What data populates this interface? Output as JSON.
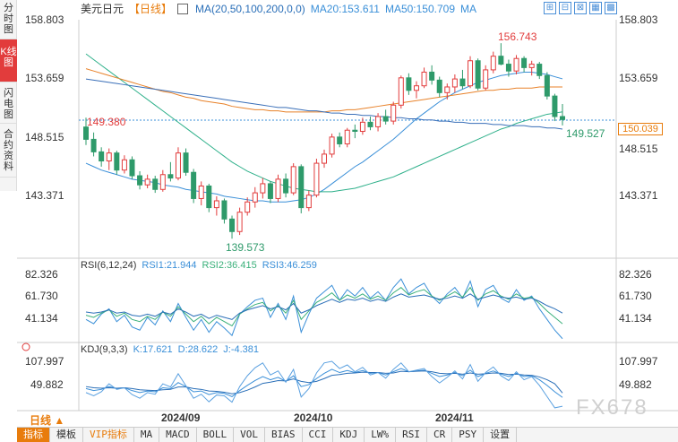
{
  "side_tabs": [
    {
      "label": "分时图",
      "active": false
    },
    {
      "label": "K线图",
      "active": true
    },
    {
      "label": "闪电图",
      "active": false
    },
    {
      "label": "合约资料",
      "active": false
    }
  ],
  "header": {
    "symbol": "美元日元",
    "period": "【日线】",
    "ma_label": "MA(20,50,100,200,0,0)",
    "ma20": "MA20:153.611",
    "ma50": "MA50:150.709",
    "ma_extra": "MA"
  },
  "tools": [
    "⊞",
    "⊟",
    "⊠",
    "▦",
    "▩"
  ],
  "price_axis": {
    "ticks": [
      "158.803",
      "153.659",
      "148.515",
      "143.371"
    ],
    "last_price": "150.039",
    "high_label": "156.743",
    "low_label": "139.573",
    "left_label": "149.380",
    "right_label": "149.527"
  },
  "rsi": {
    "name": "RSI(6,12,24)",
    "rsi1": "RSI1:21.944",
    "rsi2": "RSI2:36.415",
    "rsi3": "RSI3:46.259",
    "ticks": [
      "82.326",
      "61.730",
      "41.134"
    ]
  },
  "kdj": {
    "name": "KDJ(9,3,3)",
    "k": "K:17.621",
    "d": "D:28.622",
    "j": "J:-4.381",
    "ticks": [
      "107.997",
      "49.882"
    ]
  },
  "time_axis": [
    "2024/09",
    "2024/10",
    "2024/11"
  ],
  "period_selector": "日线 ▲",
  "bottom_tabs": [
    {
      "label": "指标",
      "active": true,
      "vip": false
    },
    {
      "label": "模板",
      "active": false,
      "vip": false
    },
    {
      "label": "VIP指标",
      "active": false,
      "vip": true
    },
    {
      "label": "MA",
      "active": false,
      "vip": false
    },
    {
      "label": "MACD",
      "active": false,
      "vip": false
    },
    {
      "label": "BOLL",
      "active": false,
      "vip": false
    },
    {
      "label": "VOL",
      "active": false,
      "vip": false
    },
    {
      "label": "BIAS",
      "active": false,
      "vip": false
    },
    {
      "label": "CCI",
      "active": false,
      "vip": false
    },
    {
      "label": "KDJ",
      "active": false,
      "vip": false
    },
    {
      "label": "LW%",
      "active": false,
      "vip": false
    },
    {
      "label": "RSI",
      "active": false,
      "vip": false
    },
    {
      "label": "CR",
      "active": false,
      "vip": false
    },
    {
      "label": "PSY",
      "active": false,
      "vip": false
    },
    {
      "label": "设置",
      "active": false,
      "vip": false
    }
  ],
  "watermark": "FX678",
  "colors": {
    "up": "#e23c3c",
    "down": "#2e9a6a",
    "ma20": "#3a8fd8",
    "ma50": "#2eb08a",
    "ma100": "#e8822a",
    "ma200": "#3a6fb8"
  },
  "candles": [
    [
      149.38,
      150.2,
      147.8,
      148.3
    ],
    [
      148.3,
      148.9,
      146.8,
      147.2
    ],
    [
      147.2,
      147.6,
      145.9,
      146.4
    ],
    [
      146.4,
      147.5,
      145.6,
      147.1
    ],
    [
      147.1,
      147.3,
      145.2,
      145.6
    ],
    [
      145.6,
      146.9,
      145.3,
      146.5
    ],
    [
      146.5,
      146.8,
      144.8,
      145.1
    ],
    [
      145.1,
      145.5,
      143.9,
      144.3
    ],
    [
      144.3,
      145.2,
      144.0,
      144.8
    ],
    [
      144.8,
      145.1,
      143.6,
      143.9
    ],
    [
      143.9,
      145.6,
      143.7,
      145.2
    ],
    [
      145.2,
      146.3,
      144.6,
      144.9
    ],
    [
      144.9,
      147.6,
      144.7,
      147.1
    ],
    [
      147.1,
      147.5,
      145.1,
      145.4
    ],
    [
      145.4,
      145.7,
      142.7,
      143.1
    ],
    [
      143.1,
      144.6,
      142.5,
      144.2
    ],
    [
      144.2,
      144.4,
      141.9,
      142.3
    ],
    [
      142.3,
      143.3,
      141.6,
      142.9
    ],
    [
      142.9,
      143.1,
      140.9,
      141.3
    ],
    [
      141.3,
      141.6,
      139.573,
      140.2
    ],
    [
      140.2,
      142.3,
      139.9,
      141.9
    ],
    [
      141.9,
      143.2,
      141.6,
      142.8
    ],
    [
      142.8,
      144.1,
      142.3,
      143.6
    ],
    [
      143.6,
      144.9,
      143.1,
      144.4
    ],
    [
      144.4,
      144.6,
      142.7,
      143.1
    ],
    [
      143.1,
      145.2,
      142.8,
      144.8
    ],
    [
      144.8,
      145.3,
      143.2,
      143.6
    ],
    [
      143.6,
      146.2,
      143.4,
      145.9
    ],
    [
      145.9,
      146.1,
      141.8,
      142.3
    ],
    [
      142.3,
      143.8,
      142.0,
      143.4
    ],
    [
      143.4,
      146.6,
      143.2,
      146.2
    ],
    [
      146.2,
      147.4,
      145.8,
      147.0
    ],
    [
      147.0,
      148.8,
      146.7,
      148.5
    ],
    [
      148.5,
      148.9,
      147.6,
      147.9
    ],
    [
      147.9,
      149.3,
      147.6,
      149.1
    ],
    [
      149.1,
      149.6,
      148.4,
      149.0
    ],
    [
      149.0,
      150.2,
      148.7,
      149.8
    ],
    [
      149.8,
      150.3,
      149.1,
      149.4
    ],
    [
      149.4,
      150.6,
      149.0,
      150.3
    ],
    [
      150.3,
      150.9,
      149.6,
      149.9
    ],
    [
      149.9,
      151.6,
      149.6,
      151.3
    ],
    [
      151.3,
      153.9,
      151.0,
      153.7
    ],
    [
      153.7,
      154.1,
      152.2,
      152.6
    ],
    [
      152.6,
      153.4,
      151.9,
      153.0
    ],
    [
      153.0,
      154.6,
      152.8,
      154.2
    ],
    [
      154.2,
      154.8,
      153.1,
      153.5
    ],
    [
      153.5,
      153.8,
      152.0,
      152.4
    ],
    [
      152.4,
      153.2,
      151.8,
      152.9
    ],
    [
      152.9,
      154.0,
      152.4,
      153.6
    ],
    [
      153.6,
      154.4,
      152.7,
      153.0
    ],
    [
      153.0,
      155.6,
      152.8,
      155.2
    ],
    [
      155.2,
      155.4,
      152.6,
      152.8
    ],
    [
      152.8,
      154.8,
      152.6,
      154.4
    ],
    [
      154.4,
      156.0,
      154.1,
      155.6
    ],
    [
      155.6,
      156.743,
      154.8,
      154.9
    ],
    [
      154.9,
      155.3,
      153.8,
      154.3
    ],
    [
      154.3,
      155.7,
      154.0,
      155.4
    ],
    [
      155.4,
      155.6,
      154.2,
      154.6
    ],
    [
      154.6,
      155.2,
      153.9,
      154.9
    ],
    [
      154.9,
      155.1,
      153.6,
      153.9
    ],
    [
      153.9,
      154.2,
      151.8,
      152.1
    ],
    [
      152.1,
      152.3,
      149.9,
      150.3
    ],
    [
      150.3,
      151.4,
      149.527,
      150.039
    ]
  ],
  "rsi_series": {
    "rsi1": [
      40,
      36,
      45,
      50,
      38,
      44,
      33,
      30,
      42,
      35,
      48,
      38,
      55,
      42,
      30,
      40,
      28,
      38,
      32,
      25,
      45,
      52,
      58,
      60,
      42,
      55,
      40,
      62,
      28,
      45,
      60,
      66,
      72,
      58,
      68,
      62,
      70,
      60,
      66,
      58,
      70,
      78,
      64,
      70,
      74,
      62,
      55,
      64,
      70,
      60,
      76,
      52,
      68,
      72,
      60,
      56,
      68,
      58,
      62,
      50,
      40,
      30,
      22
    ],
    "rsi2": [
      44,
      42,
      46,
      49,
      43,
      46,
      40,
      38,
      43,
      40,
      47,
      43,
      52,
      45,
      38,
      43,
      36,
      42,
      38,
      34,
      45,
      50,
      54,
      56,
      48,
      53,
      46,
      58,
      40,
      48,
      56,
      60,
      65,
      58,
      63,
      60,
      64,
      59,
      62,
      58,
      65,
      70,
      63,
      66,
      68,
      62,
      58,
      62,
      66,
      61,
      70,
      58,
      64,
      67,
      62,
      59,
      64,
      60,
      61,
      55,
      48,
      42,
      36
    ],
    "rsi3": [
      47,
      46,
      47,
      49,
      46,
      47,
      44,
      43,
      45,
      43,
      47,
      45,
      50,
      47,
      43,
      45,
      41,
      44,
      42,
      40,
      46,
      49,
      51,
      53,
      50,
      52,
      49,
      55,
      46,
      49,
      53,
      56,
      59,
      56,
      59,
      58,
      60,
      57,
      59,
      57,
      61,
      64,
      61,
      62,
      63,
      61,
      59,
      60,
      62,
      60,
      64,
      59,
      61,
      63,
      61,
      60,
      61,
      59,
      60,
      57,
      53,
      50,
      46
    ]
  },
  "kdj_series": {
    "k": [
      40,
      35,
      38,
      45,
      40,
      42,
      35,
      30,
      34,
      32,
      42,
      40,
      55,
      45,
      32,
      34,
      25,
      30,
      28,
      20,
      35,
      48,
      60,
      70,
      62,
      68,
      58,
      72,
      45,
      50,
      65,
      78,
      88,
      80,
      85,
      80,
      85,
      78,
      80,
      74,
      82,
      90,
      82,
      84,
      86,
      78,
      70,
      74,
      80,
      72,
      86,
      70,
      78,
      84,
      76,
      70,
      78,
      70,
      72,
      62,
      48,
      32,
      18
    ],
    "d": [
      45,
      42,
      41,
      42,
      41,
      42,
      40,
      37,
      36,
      35,
      37,
      38,
      44,
      44,
      40,
      38,
      34,
      33,
      31,
      27,
      30,
      36,
      44,
      53,
      56,
      60,
      59,
      64,
      58,
      55,
      58,
      65,
      73,
      75,
      78,
      79,
      81,
      80,
      80,
      78,
      79,
      83,
      82,
      83,
      84,
      82,
      78,
      77,
      78,
      76,
      79,
      76,
      77,
      79,
      78,
      75,
      76,
      74,
      73,
      69,
      62,
      52,
      29
    ],
    "j": [
      30,
      22,
      32,
      52,
      38,
      42,
      25,
      16,
      30,
      26,
      52,
      44,
      77,
      47,
      16,
      26,
      7,
      24,
      22,
      6,
      45,
      72,
      92,
      104,
      74,
      84,
      56,
      88,
      19,
      40,
      79,
      104,
      108,
      90,
      99,
      82,
      93,
      74,
      80,
      66,
      88,
      104,
      82,
      86,
      90,
      70,
      54,
      68,
      84,
      64,
      100,
      58,
      80,
      94,
      72,
      60,
      82,
      62,
      70,
      48,
      20,
      -8,
      -4
    ]
  },
  "ma_series": {
    "ma20": [
      146.2,
      145.9,
      145.6,
      145.4,
      145.2,
      145.0,
      144.8,
      144.7,
      144.6,
      144.5,
      144.3,
      144.2,
      144.1,
      143.9,
      143.8,
      143.7,
      143.6,
      143.5,
      143.3,
      143.2,
      143.1,
      143.0,
      142.9,
      142.9,
      142.8,
      142.8,
      142.8,
      142.9,
      143.0,
      143.2,
      143.5,
      143.9,
      144.4,
      144.9,
      145.4,
      145.9,
      146.3,
      146.8,
      147.3,
      147.8,
      148.3,
      148.9,
      149.5,
      150.1,
      150.6,
      151.1,
      151.6,
      152.0,
      152.4,
      152.7,
      153.0,
      153.3,
      153.5,
      153.7,
      153.9,
      154.0,
      154.1,
      154.2,
      154.2,
      154.1,
      154.0,
      153.8,
      153.611
    ],
    "ma50": [
      155.8,
      155.3,
      154.8,
      154.3,
      153.8,
      153.3,
      152.8,
      152.3,
      151.8,
      151.3,
      150.8,
      150.3,
      149.8,
      149.3,
      148.8,
      148.3,
      147.8,
      147.3,
      146.8,
      146.3,
      145.9,
      145.5,
      145.2,
      144.9,
      144.6,
      144.4,
      144.2,
      144.0,
      143.9,
      143.8,
      143.7,
      143.7,
      143.7,
      143.8,
      143.9,
      144.0,
      144.2,
      144.4,
      144.6,
      144.8,
      145.0,
      145.3,
      145.6,
      145.9,
      146.2,
      146.5,
      146.8,
      147.1,
      147.4,
      147.7,
      148.0,
      148.3,
      148.6,
      148.9,
      149.2,
      149.4,
      149.7,
      149.9,
      150.1,
      150.3,
      150.5,
      150.6,
      150.709
    ],
    "ma100": [
      154.5,
      154.3,
      154.1,
      153.9,
      153.7,
      153.5,
      153.3,
      153.1,
      152.9,
      152.7,
      152.5,
      152.4,
      152.2,
      152.0,
      151.9,
      151.7,
      151.6,
      151.5,
      151.4,
      151.2,
      151.1,
      151.0,
      150.9,
      150.9,
      150.8,
      150.8,
      150.7,
      150.7,
      150.7,
      150.7,
      150.7,
      150.7,
      150.8,
      150.8,
      150.9,
      150.9,
      151.0,
      151.1,
      151.2,
      151.3,
      151.4,
      151.5,
      151.6,
      151.7,
      151.8,
      151.9,
      152.0,
      152.1,
      152.2,
      152.3,
      152.4,
      152.5,
      152.6,
      152.6,
      152.7,
      152.7,
      152.8,
      152.8,
      152.8,
      152.9,
      152.9,
      152.9,
      152.9
    ],
    "ma200": [
      153.6,
      153.5,
      153.4,
      153.3,
      153.2,
      153.1,
      153.0,
      152.9,
      152.8,
      152.7,
      152.6,
      152.5,
      152.4,
      152.3,
      152.2,
      152.1,
      152.0,
      151.9,
      151.8,
      151.7,
      151.6,
      151.5,
      151.4,
      151.3,
      151.2,
      151.1,
      151.1,
      151.0,
      150.9,
      150.8,
      150.8,
      150.7,
      150.6,
      150.6,
      150.5,
      150.5,
      150.4,
      150.4,
      150.3,
      150.3,
      150.2,
      150.2,
      150.1,
      150.1,
      150.0,
      150.0,
      149.9,
      149.9,
      149.8,
      149.8,
      149.7,
      149.7,
      149.7,
      149.6,
      149.6,
      149.5,
      149.5,
      149.5,
      149.4,
      149.4,
      149.3,
      149.3,
      149.2
    ]
  }
}
